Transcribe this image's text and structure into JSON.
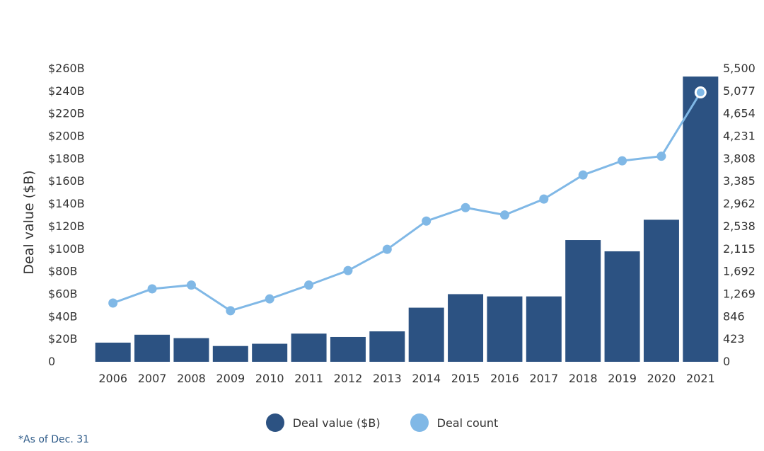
{
  "chart_data": {
    "type": "bar",
    "categories": [
      "2006",
      "2007",
      "2008",
      "2009",
      "2010",
      "2011",
      "2012",
      "2013",
      "2014",
      "2015",
      "2016",
      "2017",
      "2018",
      "2019",
      "2020",
      "2021"
    ],
    "series": [
      {
        "name": "Deal value ($B)",
        "type": "bar",
        "axis": "left",
        "color": "#2c5282",
        "values": [
          17,
          24,
          21,
          14,
          16,
          25,
          22,
          27,
          48,
          60,
          58,
          58,
          108,
          98,
          126,
          253
        ]
      },
      {
        "name": "Deal count",
        "type": "line",
        "axis": "right",
        "color": "#80b8e6",
        "values": [
          1103,
          1369,
          1440,
          958,
          1180,
          1440,
          1712,
          2110,
          2640,
          2893,
          2755,
          3054,
          3505,
          3771,
          3857,
          5055
        ]
      }
    ],
    "ylabel": "Deal value ($B)",
    "y_left": {
      "min": 0,
      "max": 260,
      "ticks": [
        0,
        20,
        40,
        60,
        80,
        100,
        120,
        140,
        160,
        180,
        200,
        220,
        240,
        260
      ],
      "tick_labels": [
        "0",
        "$20B",
        "$40B",
        "$60B",
        "$80B",
        "$100B",
        "$120B",
        "$140B",
        "$160B",
        "$180B",
        "$200B",
        "$220B",
        "$240B",
        "$260B"
      ]
    },
    "y_right": {
      "min": 0,
      "max": 5500,
      "ticks": [
        0,
        423,
        846,
        1269,
        1692,
        2115,
        2538,
        2962,
        3385,
        3808,
        4231,
        4654,
        5077,
        5500
      ],
      "tick_labels": [
        "0",
        "423",
        "846",
        "1,269",
        "1,692",
        "2,115",
        "2,538",
        "2,962",
        "3,385",
        "3,808",
        "4,231",
        "4,654",
        "5,077",
        "5,500"
      ]
    },
    "grid": false,
    "legend_position": "bottom",
    "highlight_last_point": true
  },
  "legend": [
    {
      "label": "Deal value ($B)",
      "color": "#2c5282"
    },
    {
      "label": "Deal count",
      "color": "#80b8e6"
    }
  ],
  "footnote": "*As of Dec. 31"
}
